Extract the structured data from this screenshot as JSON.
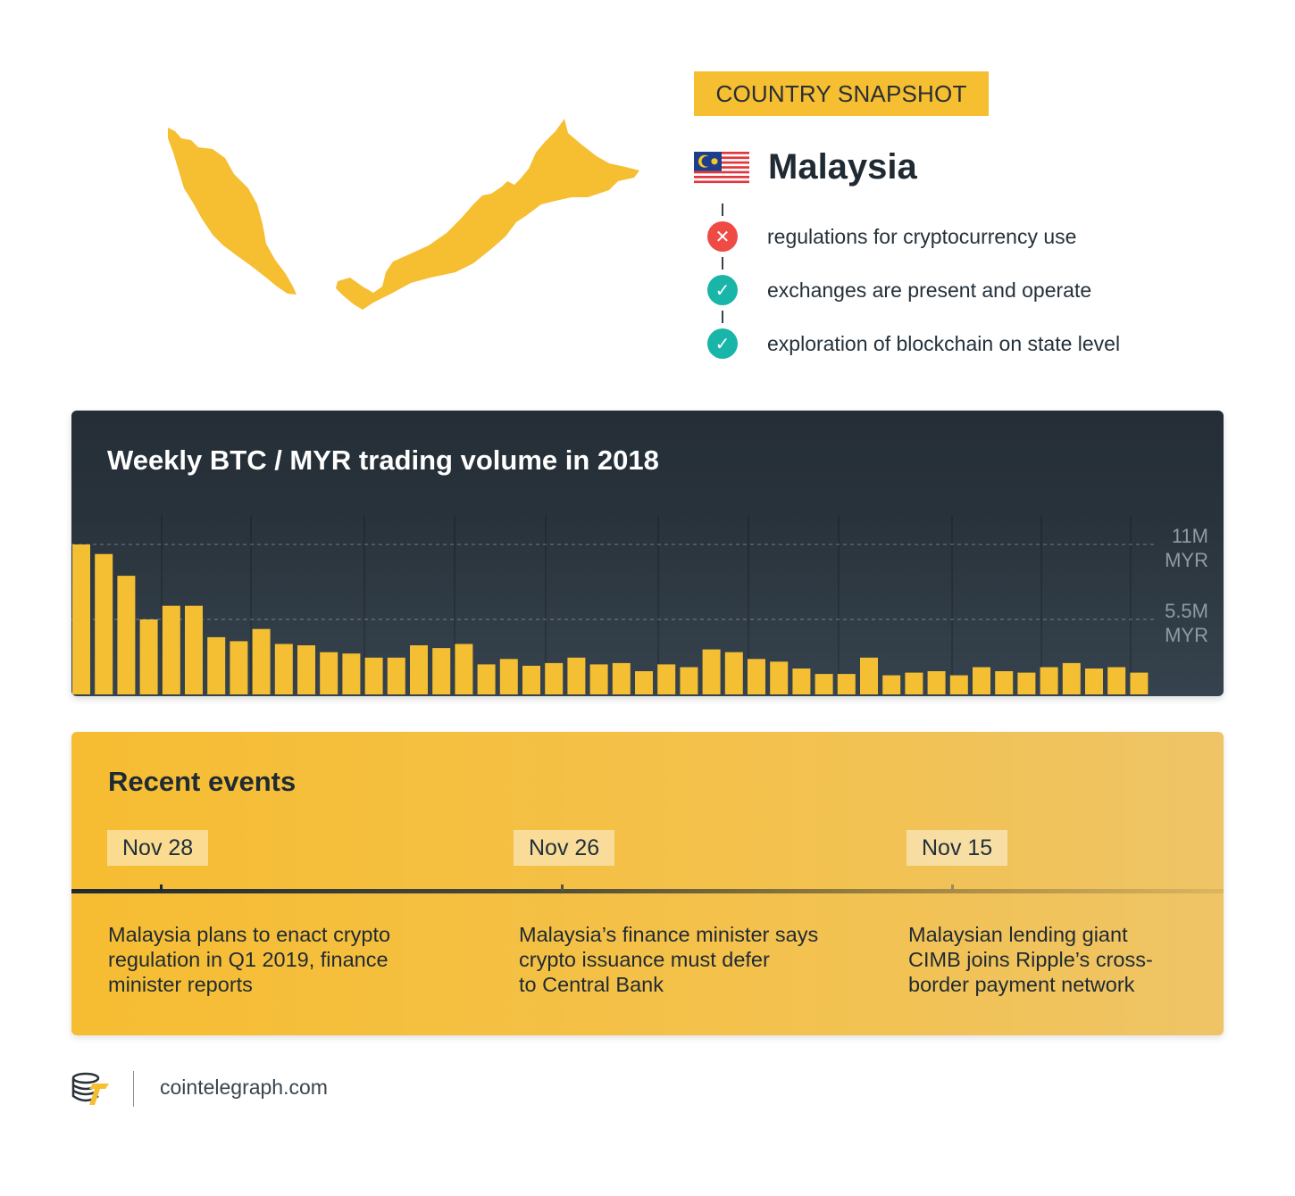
{
  "snapshot": {
    "tag": "COUNTRY SNAPSHOT",
    "country": "Malaysia",
    "flag_icon": "malaysia-flag-icon",
    "facts": [
      {
        "text": "regulations for cryptocurrency use",
        "status": "no",
        "icon": "x-icon"
      },
      {
        "text": "exchanges are present and operate",
        "status": "yes",
        "icon": "check-icon"
      },
      {
        "text": "exploration of blockchain on state level",
        "status": "yes",
        "icon": "check-icon"
      }
    ],
    "colors": {
      "accent": "#f6be31",
      "no": "#ef4b45",
      "yes": "#19b5a8"
    }
  },
  "chart_data": {
    "type": "bar",
    "title": "Weekly BTC / MYR trading volume in 2018",
    "ylim": [
      0,
      11000000
    ],
    "yticks": [
      {
        "value": 11000000,
        "label1": "11M",
        "label2": "MYR"
      },
      {
        "value": 5500000,
        "label1": "5.5M",
        "label2": "MYR"
      }
    ],
    "bar_color": "#f4bf32",
    "values": [
      11000000,
      10300000,
      8700000,
      5500000,
      6500000,
      6500000,
      4200000,
      3900000,
      4800000,
      3700000,
      3600000,
      3100000,
      3000000,
      2700000,
      2700000,
      3600000,
      3400000,
      3700000,
      2200000,
      2600000,
      2100000,
      2300000,
      2700000,
      2200000,
      2300000,
      1700000,
      2200000,
      2000000,
      3300000,
      3100000,
      2600000,
      2400000,
      1900000,
      1500000,
      1500000,
      2700000,
      1400000,
      1600000,
      1700000,
      1400000,
      2000000,
      1700000,
      1600000,
      2000000,
      2300000,
      1900000,
      2000000,
      1600000
    ]
  },
  "events": {
    "title": "Recent events",
    "items": [
      {
        "date": "Nov 28",
        "lines": [
          "Malaysia plans to enact crypto",
          "regulation in Q1 2019, finance",
          "minister reports"
        ]
      },
      {
        "date": "Nov 26",
        "lines": [
          "Malaysia’s finance minister says",
          "crypto issuance must defer",
          "to Central Bank"
        ]
      },
      {
        "date": "Nov 15",
        "lines": [
          "Malaysian lending giant",
          "CIMB joins Ripple’s cross-",
          "border payment network"
        ]
      }
    ]
  },
  "footer": {
    "url": "cointelegraph.com",
    "logo_icon": "cointelegraph-logo-icon"
  }
}
